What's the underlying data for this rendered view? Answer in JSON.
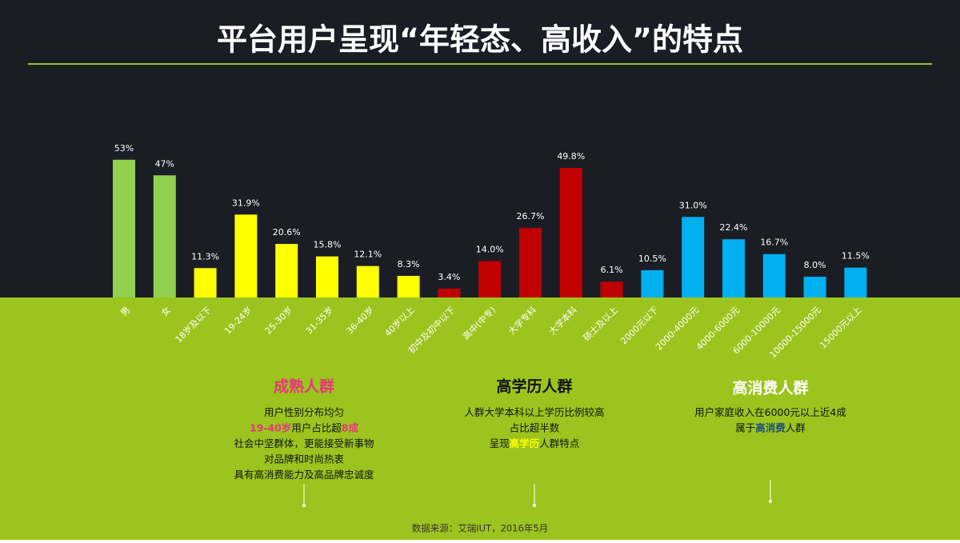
{
  "title": "平台用户呈现“年轻态、高收入”的特点",
  "chart_data": {
    "type": "bar",
    "categories": [
      "男",
      "女",
      "18岁及以下",
      "19-24岁",
      "25-30岁",
      "31-35岁",
      "36-40岁",
      "40岁以上",
      "初中及初中以下",
      "高中(中专)",
      "大学专科",
      "大学本科",
      "硕士及以上",
      "2000元以下",
      "2000-4000元",
      "4000-6000元",
      "6000-10000元",
      "10000-15000元",
      "15000元以上"
    ],
    "values": [
      53,
      47,
      11.3,
      31.9,
      20.6,
      15.8,
      12.1,
      8.3,
      3.4,
      14.0,
      26.7,
      49.8,
      6.1,
      10.5,
      31.0,
      22.4,
      16.7,
      8.0,
      11.5
    ],
    "value_labels": [
      "53%",
      "47%",
      "11.3%",
      "31.9%",
      "20.6%",
      "15.8%",
      "12.1%",
      "8.3%",
      "3.4%",
      "14.0%",
      "26.7%",
      "49.8%",
      "6.1%",
      "10.5%",
      "31.0%",
      "22.4%",
      "16.7%",
      "8.0%",
      "11.5%"
    ],
    "colors": [
      "#92d050",
      "#92d050",
      "#ffff00",
      "#ffff00",
      "#ffff00",
      "#ffff00",
      "#ffff00",
      "#ffff00",
      "#c00000",
      "#c00000",
      "#c00000",
      "#c00000",
      "#c00000",
      "#00b0f0",
      "#00b0f0",
      "#00b0f0",
      "#00b0f0",
      "#00b0f0",
      "#00b0f0"
    ],
    "ylim": [
      0,
      60
    ]
  },
  "annotations": [
    {
      "heading": "成熟人群",
      "color": "#e8357a",
      "lines": [
        [
          "用户性别分布均匀"
        ],
        [
          {
            "text": "19-40岁",
            "color": "#e8357a"
          },
          "用户占比超",
          {
            "text": "8成",
            "color": "#e8357a"
          }
        ],
        [
          "社会中坚群体，更能接受新事物"
        ],
        [
          "对品牌和时尚热衷"
        ],
        [
          "具有高消费能力及高品牌忠诚度"
        ]
      ]
    },
    {
      "heading": "高学历人群",
      "color": "#111111",
      "lines": [
        [
          "人群大学本科以上学历比例较高"
        ],
        [
          "占比超半数"
        ],
        [
          "呈现",
          {
            "text": "高学历",
            "color": "#ffff00"
          },
          "人群特点"
        ]
      ]
    },
    {
      "heading": "高消费人群",
      "color": "#ffffff",
      "lines": [
        [
          "用户家庭收入在6000元以上近4成"
        ],
        [
          "属于",
          {
            "text": "高消费",
            "color": "#1f4e79"
          },
          "人群"
        ]
      ]
    }
  ],
  "source": "数据来源：艾瑞IUT，2016年5月"
}
